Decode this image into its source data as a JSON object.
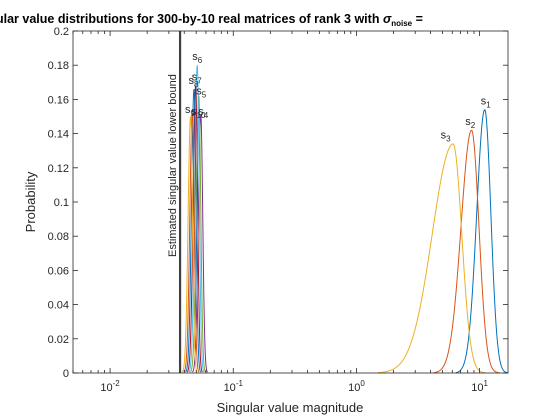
{
  "chart_data": {
    "type": "line",
    "title": {
      "prefix": "ular value distributions for 300-by-10 real matrices of rank 3 with ",
      "sigma": "σ",
      "sigma_sub": "noise",
      "suffix": " = "
    },
    "xlabel": "Singular value magnitude",
    "ylabel": "Probability",
    "xscale": "log",
    "xlim": [
      0.005,
      17
    ],
    "ylim": [
      0,
      0.2
    ],
    "xticks": [
      {
        "value": 0.01,
        "base": "10",
        "exp": "-2"
      },
      {
        "value": 0.1,
        "base": "10",
        "exp": "-1"
      },
      {
        "value": 1,
        "base": "10",
        "exp": "0"
      },
      {
        "value": 10,
        "base": "10",
        "exp": "1"
      }
    ],
    "yticks": [
      "0",
      "0.02",
      "0.04",
      "0.06",
      "0.08",
      "0.1",
      "0.12",
      "0.14",
      "0.16",
      "0.18",
      "0.2"
    ],
    "grid": false,
    "reference_line": {
      "x": 0.037,
      "label": "Estimated singular value lower bound",
      "color": "#404040"
    },
    "signal_series": [
      {
        "name": "s",
        "index": "1",
        "color": "#0072BD",
        "peak_x": 11.0,
        "peak_y": 0.154,
        "left_sigma": 0.065,
        "right_sigma": 0.05,
        "label_x": 11.2,
        "label_y": 0.157
      },
      {
        "name": "s",
        "index": "2",
        "color": "#D95319",
        "peak_x": 8.6,
        "peak_y": 0.142,
        "left_sigma": 0.085,
        "right_sigma": 0.06,
        "label_x": 8.4,
        "label_y": 0.145
      },
      {
        "name": "s",
        "index": "3",
        "color": "#EDB120",
        "peak_x": 6.1,
        "peak_y": 0.134,
        "left_sigma": 0.17,
        "right_sigma": 0.07,
        "label_x": 5.3,
        "label_y": 0.137
      }
    ],
    "noise_series": [
      {
        "name": "s",
        "index": "4",
        "color": "#7E2F8E",
        "peak_x": 0.0545,
        "peak_y": 0.151,
        "label_x": 0.057,
        "label_y": 0.151
      },
      {
        "name": "s",
        "index": "5",
        "color": "#77AC30",
        "peak_x": 0.0525,
        "peak_y": 0.162,
        "label_x": 0.055,
        "label_y": 0.163
      },
      {
        "name": "s",
        "index": "6",
        "color": "#4DBEEE",
        "peak_x": 0.051,
        "peak_y": 0.18,
        "label_x": 0.051,
        "label_y": 0.183
      },
      {
        "name": "s",
        "index": "7",
        "color": "#A2142F",
        "peak_x": 0.0495,
        "peak_y": 0.168,
        "label_x": 0.0505,
        "label_y": 0.171
      },
      {
        "name": "s",
        "index": "8",
        "color": "#0072BD",
        "peak_x": 0.048,
        "peak_y": 0.166,
        "label_x": 0.0475,
        "label_y": 0.169
      },
      {
        "name": "s",
        "index": "9",
        "color": "#D95319",
        "peak_x": 0.0465,
        "peak_y": 0.152,
        "label_x": 0.0445,
        "label_y": 0.152
      },
      {
        "name": "s",
        "index": "10",
        "color": "#EDB120",
        "peak_x": 0.045,
        "peak_y": 0.15,
        "label_x": 0.052,
        "label_y": 0.151
      }
    ]
  }
}
